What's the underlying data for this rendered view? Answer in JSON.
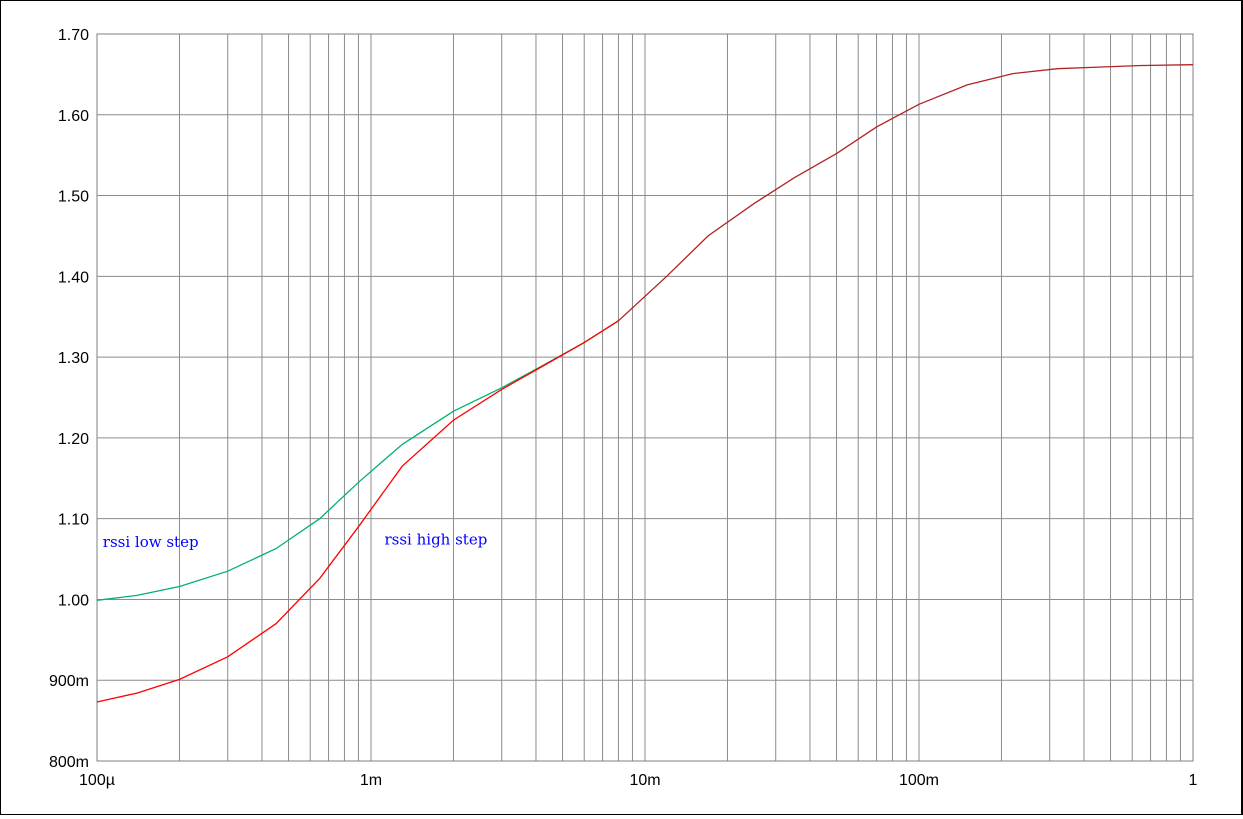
{
  "chart_data": {
    "type": "line",
    "x_scale": "log",
    "xlim": [
      0.0001,
      1
    ],
    "ylim": [
      0.8,
      1.7
    ],
    "grid": true,
    "x_major_ticks": [
      {
        "value": 0.0001,
        "label": "100µ"
      },
      {
        "value": 0.001,
        "label": "1m"
      },
      {
        "value": 0.01,
        "label": "10m"
      },
      {
        "value": 0.1,
        "label": "100m"
      },
      {
        "value": 1,
        "label": "1"
      }
    ],
    "y_ticks": [
      {
        "value": 0.8,
        "label": "800m"
      },
      {
        "value": 0.9,
        "label": "900m"
      },
      {
        "value": 1.0,
        "label": "1.00"
      },
      {
        "value": 1.1,
        "label": "1.10"
      },
      {
        "value": 1.2,
        "label": "1.20"
      },
      {
        "value": 1.3,
        "label": "1.30"
      },
      {
        "value": 1.4,
        "label": "1.40"
      },
      {
        "value": 1.5,
        "label": "1.50"
      },
      {
        "value": 1.6,
        "label": "1.60"
      },
      {
        "value": 1.7,
        "label": "1.70"
      }
    ],
    "series": [
      {
        "color": "#00b26b",
        "x": [
          0.0001,
          0.00014,
          0.0002,
          0.0003,
          0.00045,
          0.00065,
          0.0009,
          0.0013,
          0.002,
          0.003,
          0.004,
          0.006,
          0.008
        ],
        "y": [
          0.999,
          1.005,
          1.016,
          1.035,
          1.063,
          1.1,
          1.145,
          1.192,
          1.233,
          1.262,
          1.285,
          1.318,
          1.345
        ]
      },
      {
        "color": "#ff0000",
        "x": [
          0.0001,
          0.00014,
          0.0002,
          0.0003,
          0.00045,
          0.00065,
          0.0009,
          0.0013,
          0.002,
          0.003,
          0.004,
          0.006,
          0.008
        ],
        "y": [
          0.873,
          0.884,
          0.901,
          0.929,
          0.97,
          1.026,
          1.09,
          1.165,
          1.222,
          1.26,
          1.284,
          1.318,
          1.345
        ]
      },
      {
        "color": "#b22222",
        "x": [
          0.008,
          0.012,
          0.017,
          0.025,
          0.035,
          0.05,
          0.07,
          0.1,
          0.15,
          0.22,
          0.32,
          0.45,
          0.65,
          1.0
        ],
        "y": [
          1.345,
          1.4,
          1.45,
          1.49,
          1.522,
          1.552,
          1.585,
          1.613,
          1.637,
          1.651,
          1.657,
          1.659,
          1.661,
          1.662
        ]
      }
    ],
    "annotations": [
      {
        "text": "rssi low step",
        "x": 0.000105,
        "y": 1.065,
        "color": "#0000ff"
      },
      {
        "text": "rssi high step",
        "x": 0.00112,
        "y": 1.068,
        "color": "#0000ff"
      }
    ]
  }
}
